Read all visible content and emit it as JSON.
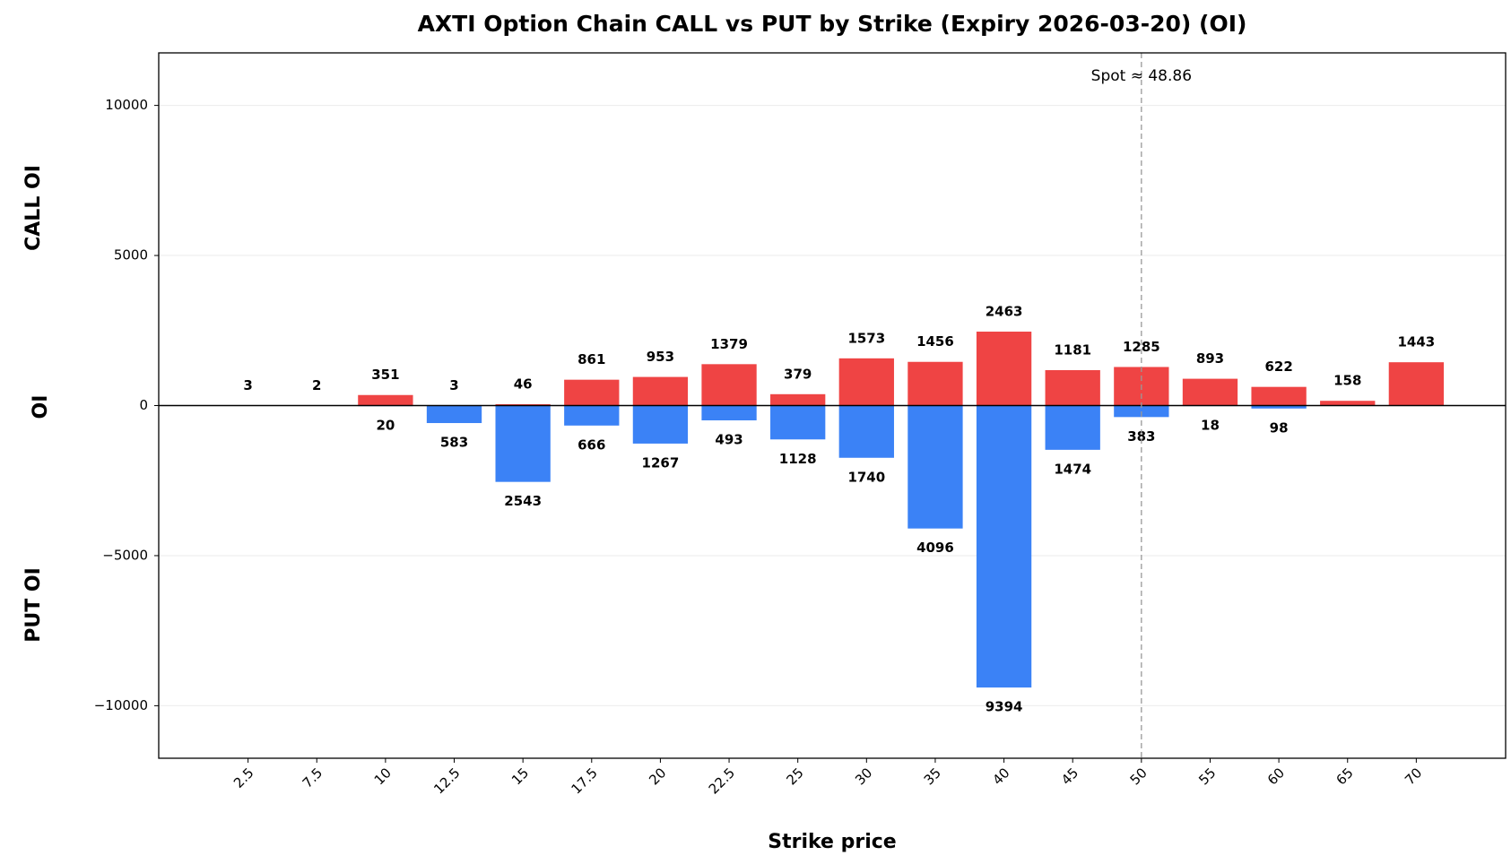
{
  "chart_data": {
    "type": "bar",
    "title": "AXTI Option Chain CALL vs PUT by Strike (Expiry 2026-03-20) (OI)",
    "x_label": "Strike price",
    "y_label": [
      "CALL OI",
      "OI",
      "PUT OI"
    ],
    "categories": [
      "2.5",
      "7.5",
      "10",
      "12.5",
      "15",
      "17.5",
      "20",
      "22.5",
      "25",
      "30",
      "35",
      "40",
      "45",
      "50",
      "55",
      "60",
      "65",
      "70"
    ],
    "series": [
      {
        "color": "#ef4444",
        "values": [
          3,
          2,
          351,
          3,
          46,
          861,
          953,
          1379,
          379,
          1573,
          1456,
          2463,
          1181,
          1285,
          893,
          622,
          158,
          1443
        ]
      },
      {
        "color": "#3b82f6",
        "values": [
          null,
          null,
          -20,
          -583,
          -2543,
          -666,
          -1267,
          -493,
          -1128,
          -1740,
          -4096,
          -9394,
          -1474,
          -383,
          -18,
          -98,
          null,
          null
        ],
        "value_labels": [
          null,
          null,
          "20",
          "583",
          "2543",
          "666",
          "1267",
          "493",
          "1128",
          "1740",
          "4096",
          "9394",
          "1474",
          "383",
          "18",
          "98",
          null,
          null
        ]
      }
    ],
    "spot": 48.86,
    "spot_label": "Spot ≈ 48.86",
    "ylim": [
      -11750,
      11750
    ],
    "yticks": [
      {
        "value": -10000,
        "label": "−10000"
      },
      {
        "value": -5000,
        "label": "−5000"
      },
      0,
      5000,
      10000
    ],
    "grid": true
  }
}
